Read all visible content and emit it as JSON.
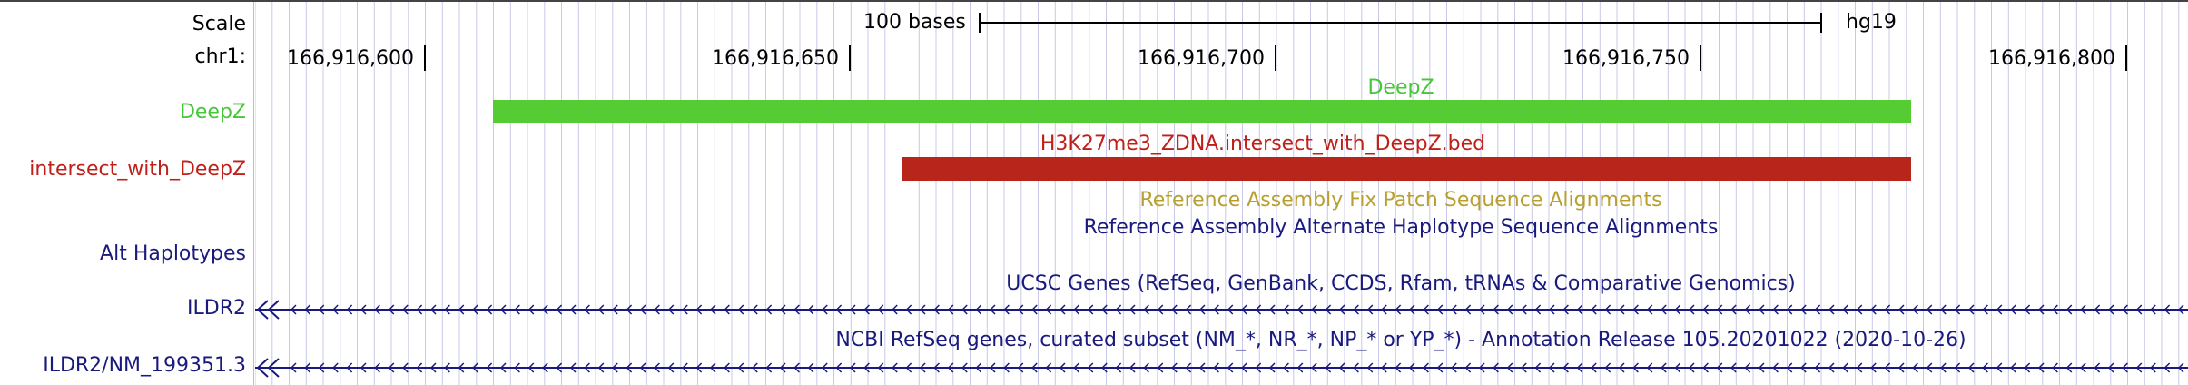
{
  "tracks_labels": {
    "scale": "Scale",
    "chrom": "chr1:",
    "deepz": "DeepZ",
    "intersect": "intersect_with_DeepZ",
    "alt_haplotypes": "Alt Haplotypes",
    "ildr2": "ILDR2",
    "ildr2_nm": "ILDR2/NM_199351.3"
  },
  "ruler": {
    "scale_text": "100 bases",
    "assembly": "hg19",
    "coords": [
      "166,916,600",
      "166,916,650",
      "166,916,700",
      "166,916,750",
      "166,916,800"
    ]
  },
  "features": {
    "deepz_title": "DeepZ",
    "intersect_title": "H3K27me3_ZDNA.intersect_with_DeepZ.bed",
    "fix_patch_title": "Reference Assembly Fix Patch Sequence Alignments",
    "alt_haplo_title": "Reference Assembly Alternate Haplotype Sequence Alignments",
    "ucsc_genes_title": "UCSC Genes (RefSeq, GenBank, CCDS, Rfam, tRNAs & Comparative Genomics)",
    "ncbi_refseq_title": "NCBI RefSeq genes, curated subset (NM_*, NR_*, NP_* or YP_*) - Annotation Release 105.20201022 (2020-10-26)"
  },
  "colors": {
    "deepz": "#55cc33",
    "intersect": "#b8261b",
    "fix_patch": "#b8a030",
    "navy": "#1a1a7e",
    "grid": "#c8c8e8"
  },
  "icons": {
    "strand": "reverse-strand-arrows-icon",
    "gene_start": "double-chevron-left-icon"
  }
}
